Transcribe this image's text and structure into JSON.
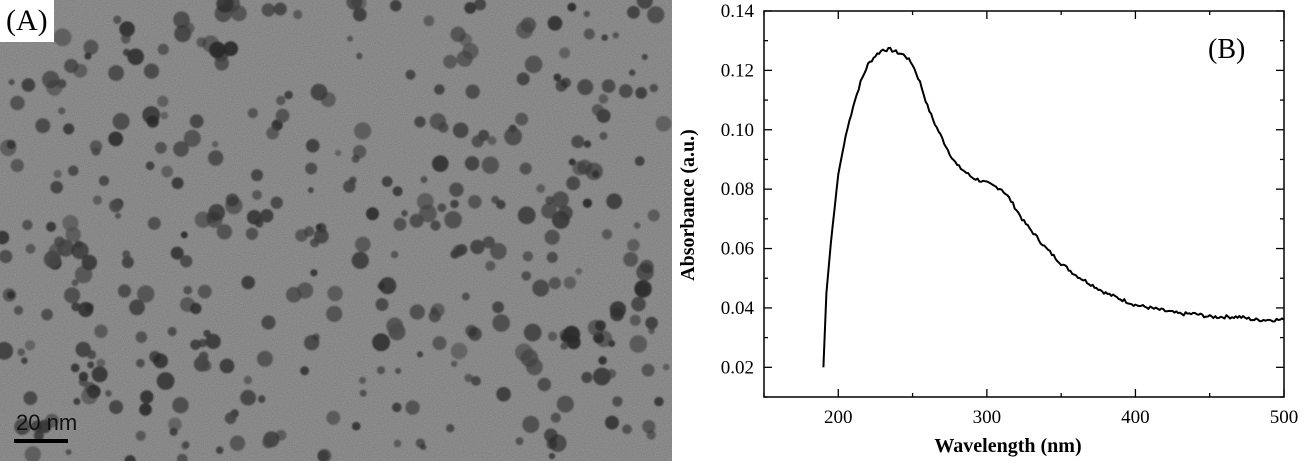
{
  "panel_a": {
    "label": "(A)",
    "scale_bar_label": "20 nm"
  },
  "chart_data": {
    "type": "line",
    "panel_label": "(B)",
    "xlabel": "Wavelength (nm)",
    "ylabel": "Absorbance (a.u.)",
    "xlim": [
      150,
      500
    ],
    "ylim": [
      0.01,
      0.14
    ],
    "xticks": [
      200,
      300,
      400,
      500
    ],
    "yticks": [
      0.02,
      0.04,
      0.06,
      0.08,
      0.1,
      0.12,
      0.14
    ],
    "ytick_labels": [
      "0.02",
      "0.04",
      "0.06",
      "0.08",
      "0.10",
      "0.12",
      "0.14"
    ],
    "grid": false,
    "series": [
      {
        "color": "#000000",
        "x": [
          190,
          192,
          195,
          200,
          205,
          210,
          215,
          220,
          225,
          230,
          235,
          240,
          245,
          250,
          255,
          260,
          265,
          270,
          275,
          280,
          285,
          290,
          295,
          300,
          305,
          310,
          315,
          320,
          325,
          330,
          340,
          350,
          360,
          370,
          380,
          390,
          400,
          410,
          420,
          430,
          440,
          450,
          460,
          470,
          480,
          490,
          500
        ],
        "y": [
          0.02,
          0.045,
          0.062,
          0.085,
          0.098,
          0.108,
          0.116,
          0.122,
          0.125,
          0.127,
          0.127,
          0.126,
          0.125,
          0.122,
          0.116,
          0.108,
          0.102,
          0.097,
          0.092,
          0.088,
          0.086,
          0.084,
          0.083,
          0.082,
          0.081,
          0.08,
          0.077,
          0.073,
          0.069,
          0.066,
          0.06,
          0.055,
          0.051,
          0.048,
          0.045,
          0.043,
          0.041,
          0.04,
          0.039,
          0.038,
          0.038,
          0.037,
          0.037,
          0.037,
          0.036,
          0.036,
          0.036
        ]
      }
    ]
  },
  "colors": {
    "tem_background": "#777777",
    "particle": "#3a3a3a",
    "line": "#000000"
  }
}
